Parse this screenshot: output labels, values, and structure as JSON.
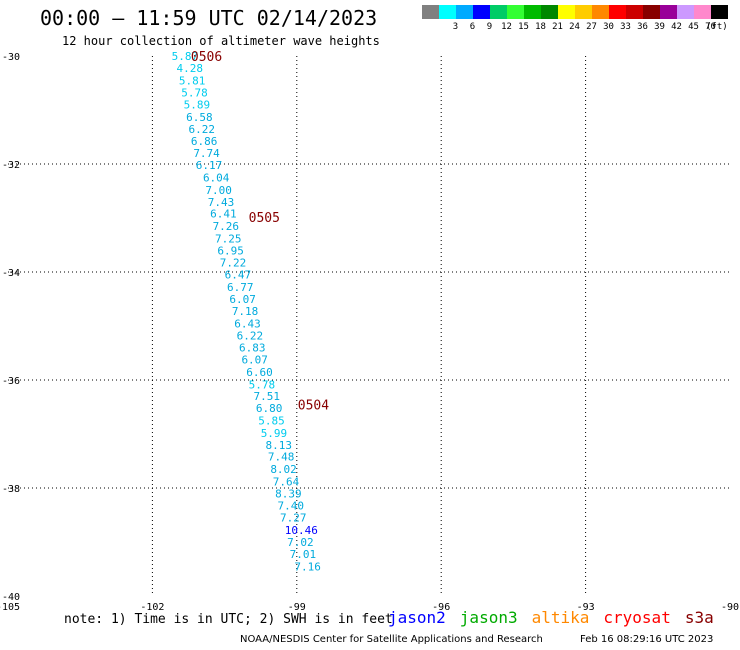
{
  "header": {
    "title": "00:00 — 11:59 UTC 02/14/2023",
    "subtitle": "12 hour collection of altimeter wave heights"
  },
  "color_scale": {
    "unit": "(ft)",
    "swatches": [
      {
        "label": "",
        "color": "#808080"
      },
      {
        "label": "3",
        "color": "#00ffff"
      },
      {
        "label": "6",
        "color": "#00aaff"
      },
      {
        "label": "9",
        "color": "#0000ff"
      },
      {
        "label": "12",
        "color": "#00cc66"
      },
      {
        "label": "15",
        "color": "#33ff33"
      },
      {
        "label": "18",
        "color": "#00bb00"
      },
      {
        "label": "21",
        "color": "#008800"
      },
      {
        "label": "24",
        "color": "#ffff00"
      },
      {
        "label": "27",
        "color": "#ffcc00"
      },
      {
        "label": "30",
        "color": "#ff8800"
      },
      {
        "label": "33",
        "color": "#ff0000"
      },
      {
        "label": "36",
        "color": "#cc0000"
      },
      {
        "label": "39",
        "color": "#880000"
      },
      {
        "label": "42",
        "color": "#990099"
      },
      {
        "label": "45",
        "color": "#cc99ff"
      },
      {
        "label": "70",
        "color": "#ff88cc"
      },
      {
        "label": "",
        "color": "#000000"
      }
    ]
  },
  "footer": {
    "note": "note: 1) Time is in UTC; 2) SWH is in feet",
    "satellites": [
      {
        "name": "jason2",
        "color": "#0000ff"
      },
      {
        "name": "jason3",
        "color": "#00aa00"
      },
      {
        "name": "altika",
        "color": "#ff8800"
      },
      {
        "name": "cryosat",
        "color": "#ff0000"
      },
      {
        "name": "s3a",
        "color": "#880000"
      }
    ],
    "credit": "NOAA/NESDIS Center for Satellite Applications and Research",
    "generated": "Feb 16 08:29:16 UTC 2023"
  },
  "chart_data": {
    "type": "scatter",
    "title": "00:00 — 11:59 UTC 02/14/2023",
    "subtitle": "12 hour collection of altimeter wave heights",
    "xlabel": "",
    "ylabel": "",
    "xlim": [
      -105,
      -90
    ],
    "ylim": [
      -40,
      -30
    ],
    "x_ticks": [
      -105,
      -102,
      -99,
      -96,
      -93,
      -90
    ],
    "y_ticks": [
      -30,
      -32,
      -34,
      -36,
      -38,
      -40
    ],
    "grid": true,
    "colors": {
      "light": "#00ccee",
      "mid": "#00aadd",
      "dark": "#0000ff",
      "time": "#880000"
    },
    "time_labels": [
      {
        "text": "0506",
        "lon": -101.2,
        "lat": -30.0
      },
      {
        "text": "0505",
        "lon": -100.0,
        "lat": -32.98
      },
      {
        "text": "0504",
        "lon": -98.98,
        "lat": -36.45
      }
    ],
    "points": [
      {
        "lon": -101.6,
        "lat": -30.0,
        "swh": "5.87",
        "c": "light"
      },
      {
        "lon": -101.5,
        "lat": -30.22,
        "swh": "4.28",
        "c": "light"
      },
      {
        "lon": -101.45,
        "lat": -30.45,
        "swh": "5.81",
        "c": "light"
      },
      {
        "lon": -101.4,
        "lat": -30.68,
        "swh": "5.78",
        "c": "light"
      },
      {
        "lon": -101.35,
        "lat": -30.9,
        "swh": "5.89",
        "c": "light"
      },
      {
        "lon": -101.3,
        "lat": -31.13,
        "swh": "6.58",
        "c": "mid"
      },
      {
        "lon": -101.25,
        "lat": -31.35,
        "swh": "6.22",
        "c": "mid"
      },
      {
        "lon": -101.2,
        "lat": -31.57,
        "swh": "6.86",
        "c": "mid"
      },
      {
        "lon": -101.15,
        "lat": -31.8,
        "swh": "7.74",
        "c": "mid"
      },
      {
        "lon": -101.1,
        "lat": -32.02,
        "swh": "6.17",
        "c": "mid"
      },
      {
        "lon": -100.95,
        "lat": -32.25,
        "swh": "6.04",
        "c": "mid"
      },
      {
        "lon": -100.9,
        "lat": -32.48,
        "swh": "7.00",
        "c": "mid"
      },
      {
        "lon": -100.85,
        "lat": -32.7,
        "swh": "7.43",
        "c": "mid"
      },
      {
        "lon": -100.8,
        "lat": -32.92,
        "swh": "6.41",
        "c": "mid"
      },
      {
        "lon": -100.75,
        "lat": -33.15,
        "swh": "7.26",
        "c": "mid"
      },
      {
        "lon": -100.7,
        "lat": -33.38,
        "swh": "7.25",
        "c": "mid"
      },
      {
        "lon": -100.65,
        "lat": -33.6,
        "swh": "6.95",
        "c": "mid"
      },
      {
        "lon": -100.6,
        "lat": -33.82,
        "swh": "7.22",
        "c": "mid"
      },
      {
        "lon": -100.5,
        "lat": -34.05,
        "swh": "6.47",
        "c": "mid"
      },
      {
        "lon": -100.45,
        "lat": -34.28,
        "swh": "6.77",
        "c": "mid"
      },
      {
        "lon": -100.4,
        "lat": -34.5,
        "swh": "6.07",
        "c": "mid"
      },
      {
        "lon": -100.35,
        "lat": -34.72,
        "swh": "7.18",
        "c": "mid"
      },
      {
        "lon": -100.3,
        "lat": -34.95,
        "swh": "6.43",
        "c": "mid"
      },
      {
        "lon": -100.25,
        "lat": -35.18,
        "swh": "6.22",
        "c": "mid"
      },
      {
        "lon": -100.2,
        "lat": -35.4,
        "swh": "6.83",
        "c": "mid"
      },
      {
        "lon": -100.15,
        "lat": -35.62,
        "swh": "6.07",
        "c": "mid"
      },
      {
        "lon": -100.05,
        "lat": -35.85,
        "swh": "6.60",
        "c": "mid"
      },
      {
        "lon": -100.0,
        "lat": -36.08,
        "swh": "5.78",
        "c": "light"
      },
      {
        "lon": -99.9,
        "lat": -36.3,
        "swh": "7.51",
        "c": "mid"
      },
      {
        "lon": -99.85,
        "lat": -36.52,
        "swh": "6.80",
        "c": "mid"
      },
      {
        "lon": -99.8,
        "lat": -36.75,
        "swh": "5.85",
        "c": "light"
      },
      {
        "lon": -99.75,
        "lat": -36.98,
        "swh": "5.99",
        "c": "light"
      },
      {
        "lon": -99.65,
        "lat": -37.2,
        "swh": "8.13",
        "c": "mid"
      },
      {
        "lon": -99.6,
        "lat": -37.42,
        "swh": "7.48",
        "c": "mid"
      },
      {
        "lon": -99.55,
        "lat": -37.65,
        "swh": "8.02",
        "c": "mid"
      },
      {
        "lon": -99.5,
        "lat": -37.88,
        "swh": "7.64",
        "c": "mid"
      },
      {
        "lon": -99.45,
        "lat": -38.1,
        "swh": "8.39",
        "c": "mid"
      },
      {
        "lon": -99.4,
        "lat": -38.32,
        "swh": "7.40",
        "c": "mid"
      },
      {
        "lon": -99.35,
        "lat": -38.55,
        "swh": "7.27",
        "c": "mid"
      },
      {
        "lon": -99.25,
        "lat": -38.78,
        "swh": "10.46",
        "c": "dark"
      },
      {
        "lon": -99.2,
        "lat": -39.0,
        "swh": "7.02",
        "c": "mid"
      },
      {
        "lon": -99.15,
        "lat": -39.22,
        "swh": "7.01",
        "c": "mid"
      },
      {
        "lon": -99.05,
        "lat": -39.45,
        "swh": "7.16",
        "c": "mid"
      }
    ]
  }
}
